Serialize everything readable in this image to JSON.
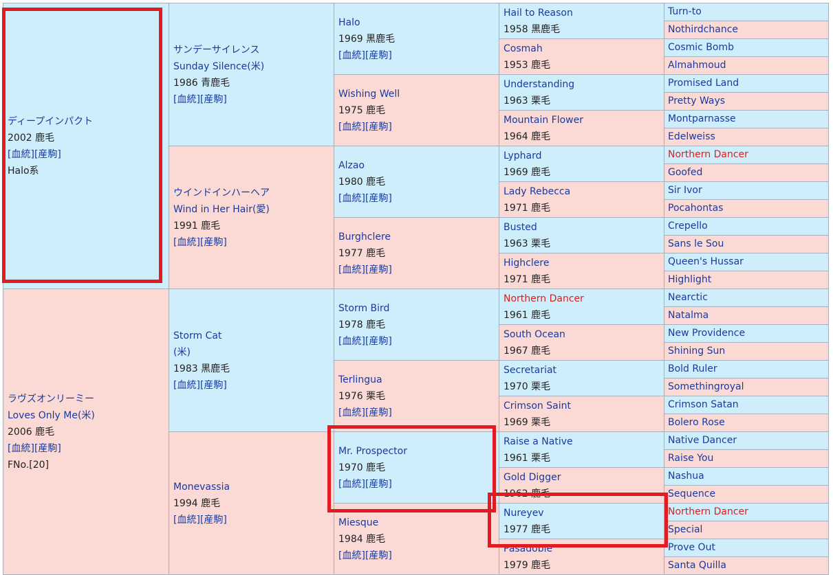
{
  "links": [
    "[血統]",
    "[産駒]"
  ],
  "col1": [
    {
      "sex": "male",
      "name": "ディープインパクト",
      "meta": "2002 鹿毛",
      "links": true,
      "extra": "Halo系",
      "extra_color": "plain"
    },
    {
      "sex": "female",
      "name": "ラヴズオンリーミー",
      "name2": "Loves Only Me(米)",
      "meta": "2006 鹿毛",
      "links": true,
      "extra": "FNo.[20]",
      "extra_color": "plain"
    }
  ],
  "col2": [
    {
      "sex": "male",
      "name": "サンデーサイレンス",
      "name2": "Sunday Silence(米)",
      "meta": "1986 青鹿毛",
      "links": true
    },
    {
      "sex": "female",
      "name": "ウインドインハーヘア",
      "name2": "Wind in Her Hair(愛)",
      "meta": "1991 鹿毛",
      "links": true
    },
    {
      "sex": "male",
      "name": "Storm Cat",
      "name2": "(米)",
      "meta": "1983 黒鹿毛",
      "links": true
    },
    {
      "sex": "female",
      "name": "Monevassia",
      "meta": "1994 鹿毛",
      "links": true
    }
  ],
  "col3": [
    {
      "sex": "male",
      "name": "Halo",
      "meta": "1969 黒鹿毛",
      "links": true
    },
    {
      "sex": "female",
      "name": "Wishing Well",
      "meta": "1975 鹿毛",
      "links": true
    },
    {
      "sex": "male",
      "name": "Alzao",
      "meta": "1980 鹿毛",
      "links": true
    },
    {
      "sex": "female",
      "name": "Burghclere",
      "meta": "1977 鹿毛",
      "links": true
    },
    {
      "sex": "male",
      "name": "Storm Bird",
      "meta": "1978 鹿毛",
      "links": true
    },
    {
      "sex": "female",
      "name": "Terlingua",
      "meta": "1976 栗毛",
      "links": true
    },
    {
      "sex": "male",
      "name": "Mr. Prospector",
      "meta": "1970 鹿毛",
      "links": true
    },
    {
      "sex": "female",
      "name": "Miesque",
      "meta": "1984 鹿毛",
      "links": true
    }
  ],
  "col4": [
    {
      "sex": "male",
      "name": "Hail to Reason",
      "meta": "1958 黒鹿毛"
    },
    {
      "sex": "female",
      "name": "Cosmah",
      "meta": "1953 鹿毛"
    },
    {
      "sex": "male",
      "name": "Understanding",
      "meta": "1963 栗毛"
    },
    {
      "sex": "female",
      "name": "Mountain Flower",
      "meta": "1964 鹿毛"
    },
    {
      "sex": "male",
      "name": "Lyphard",
      "meta": "1969 鹿毛"
    },
    {
      "sex": "female",
      "name": "Lady Rebecca",
      "meta": "1971 鹿毛"
    },
    {
      "sex": "male",
      "name": "Busted",
      "meta": "1963 栗毛"
    },
    {
      "sex": "female",
      "name": "Highclere",
      "meta": "1971 鹿毛"
    },
    {
      "sex": "male",
      "name": "Northern Dancer",
      "meta": "1961 鹿毛",
      "red": true
    },
    {
      "sex": "female",
      "name": "South Ocean",
      "meta": "1967 鹿毛"
    },
    {
      "sex": "male",
      "name": "Secretariat",
      "meta": "1970 栗毛"
    },
    {
      "sex": "female",
      "name": "Crimson Saint",
      "meta": "1969 栗毛"
    },
    {
      "sex": "male",
      "name": "Raise a Native",
      "meta": "1961 栗毛"
    },
    {
      "sex": "female",
      "name": "Gold Digger",
      "meta": "1962 鹿毛"
    },
    {
      "sex": "male",
      "name": "Nureyev",
      "meta": "1977 鹿毛"
    },
    {
      "sex": "female",
      "name": "Pasadoble",
      "meta": "1979 鹿毛"
    }
  ],
  "col5": [
    {
      "sex": "male",
      "name": "Turn-to"
    },
    {
      "sex": "female",
      "name": "Nothirdchance"
    },
    {
      "sex": "male",
      "name": "Cosmic Bomb"
    },
    {
      "sex": "female",
      "name": "Almahmoud"
    },
    {
      "sex": "male",
      "name": "Promised Land"
    },
    {
      "sex": "female",
      "name": "Pretty Ways"
    },
    {
      "sex": "male",
      "name": "Montparnasse"
    },
    {
      "sex": "female",
      "name": "Edelweiss"
    },
    {
      "sex": "male",
      "name": "Northern Dancer",
      "red": true
    },
    {
      "sex": "female",
      "name": "Goofed"
    },
    {
      "sex": "male",
      "name": "Sir Ivor"
    },
    {
      "sex": "female",
      "name": "Pocahontas"
    },
    {
      "sex": "male",
      "name": "Crepello"
    },
    {
      "sex": "female",
      "name": "Sans le Sou"
    },
    {
      "sex": "male",
      "name": "Queen's Hussar"
    },
    {
      "sex": "female",
      "name": "Highlight"
    },
    {
      "sex": "male",
      "name": "Nearctic"
    },
    {
      "sex": "female",
      "name": "Natalma"
    },
    {
      "sex": "male",
      "name": "New Providence"
    },
    {
      "sex": "female",
      "name": "Shining Sun"
    },
    {
      "sex": "male",
      "name": "Bold Ruler"
    },
    {
      "sex": "female",
      "name": "Somethingroyal"
    },
    {
      "sex": "male",
      "name": "Crimson Satan"
    },
    {
      "sex": "female",
      "name": "Bolero Rose"
    },
    {
      "sex": "male",
      "name": "Native Dancer"
    },
    {
      "sex": "female",
      "name": "Raise You"
    },
    {
      "sex": "male",
      "name": "Nashua"
    },
    {
      "sex": "female",
      "name": "Sequence"
    },
    {
      "sex": "male",
      "name": "Northern Dancer",
      "red": true
    },
    {
      "sex": "female",
      "name": "Special"
    },
    {
      "sex": "male",
      "name": "Prove Out"
    },
    {
      "sex": "female",
      "name": "Santa Quilla"
    }
  ]
}
